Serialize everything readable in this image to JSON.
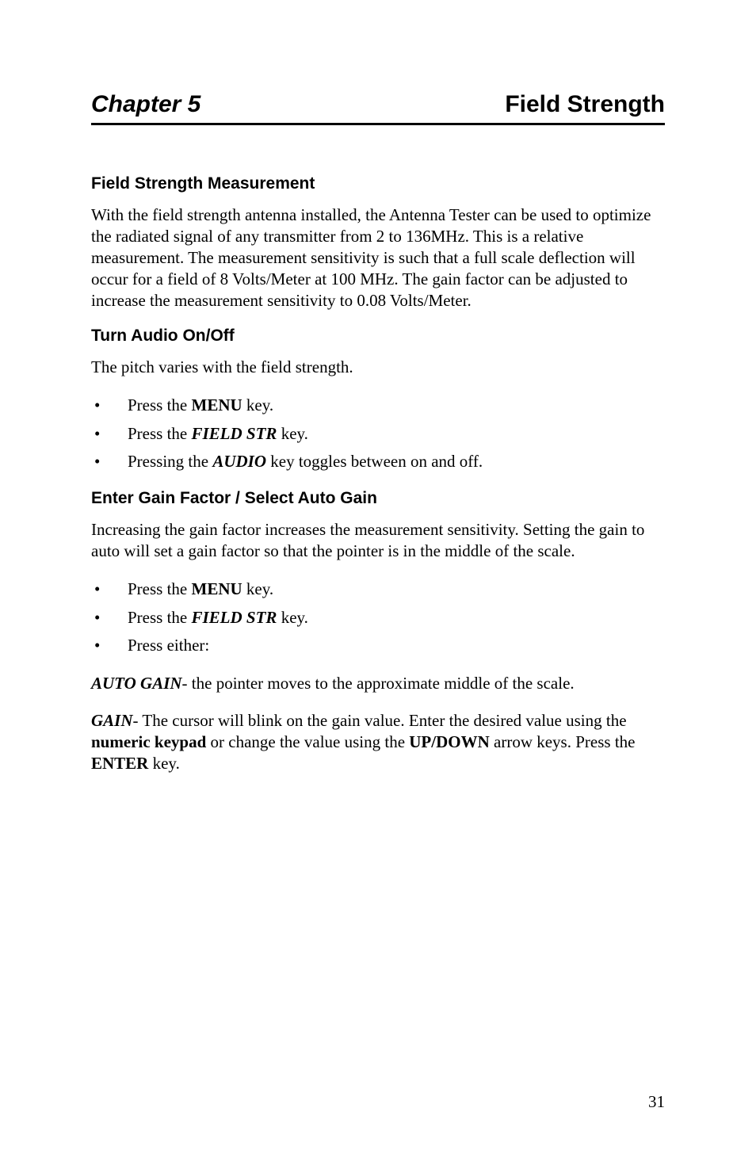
{
  "chapter": {
    "left": "Chapter 5",
    "right": "Field Strength"
  },
  "colors": {
    "text": "#000000",
    "background": "#ffffff",
    "rule": "#000000"
  },
  "sections": [
    {
      "heading": "Field Strength Measurement",
      "paragraphs": [
        "With the field strength antenna installed, the Antenna Tester can be used to optimize the radiated signal of any transmitter from 2 to 136MHz. This is a relative measurement. The measurement sensitivity is such that a full scale deflection will occur for a field of 8 Volts/Meter at 100 MHz. The gain factor can be adjusted to increase the measurement sensitivity to 0.08 Volts/Meter."
      ]
    },
    {
      "heading": "Turn Audio On/Off",
      "paragraphs": [
        "The pitch varies with the field strength."
      ],
      "bullets": {
        "b1_pre": "Press the ",
        "b1_key": "MENU",
        "b1_post": " key.",
        "b2_pre": "Press the ",
        "b2_key": "FIELD STR",
        "b2_post": " key.",
        "b3_pre": "Pressing the ",
        "b3_key": "AUDIO",
        "b3_post": " key toggles between on and off."
      }
    },
    {
      "heading": "Enter Gain Factor / Select Auto Gain",
      "paragraphs": [
        "Increasing the gain factor increases the measurement sensitivity. Setting the gain to auto will set a gain factor so that the pointer is in the middle of the scale."
      ],
      "bullets": {
        "b1_pre": "Press the ",
        "b1_key": "MENU",
        "b1_post": " key.",
        "b2_pre": "Press the ",
        "b2_key": "FIELD STR",
        "b2_post": " key.",
        "b3_text": "Press either:"
      },
      "after": {
        "p1_key": "AUTO GAIN",
        "p1_rest": "- the pointer moves to the approximate middle of the scale.",
        "p2_key": "GAIN",
        "p2_a": "- The cursor will blink on the gain value. Enter the desired value using the ",
        "p2_k1": "numeric keypad",
        "p2_b": " or change the value using the ",
        "p2_k2": "UP/DOWN",
        "p2_c": " arrow keys. Press the ",
        "p2_k3": "ENTER",
        "p2_d": " key."
      }
    }
  ],
  "page_number": "31"
}
